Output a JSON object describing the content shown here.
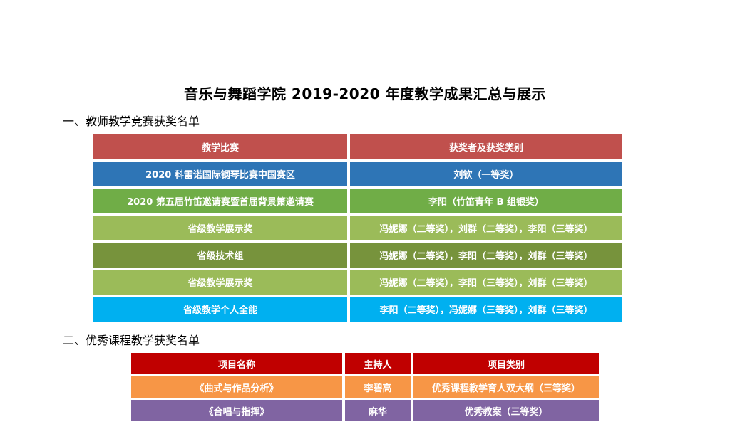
{
  "title": "音乐与舞蹈学院 2019-2020 年度教学成果汇总与展示",
  "section1": {
    "heading": "一、教师教学竞赛获奖名单",
    "headers": [
      "教学比赛",
      "获奖者及获奖类别"
    ],
    "header_color": "#c0504d",
    "rows": [
      {
        "competition": "2020 科雷诺国际钢琴比赛中国赛区",
        "winners": "刘钦（一等奖）",
        "color": "#2e75b6"
      },
      {
        "competition": "2020 第五届竹笛邀请赛暨首届背景箫邀请赛",
        "winners": "李阳（竹笛青年 B 组银奖）",
        "color": "#70ad47"
      },
      {
        "competition": "省级教学展示奖",
        "winners": "冯妮娜（二等奖），刘群（二等奖），李阳（三等奖）",
        "color": "#9bbb59"
      },
      {
        "competition": "省级技术组",
        "winners": "冯妮娜（二等奖），李阳（二等奖），刘群（三等奖）",
        "color": "#77933c"
      },
      {
        "competition": "省级教学展示奖",
        "winners": "冯妮娜（二等奖），李阳（三等奖），刘群（三等奖）",
        "color": "#9bbb59"
      },
      {
        "competition": "省级教学个人全能",
        "winners": "李阳（二等奖），冯妮娜（三等奖），刘群（三等奖）",
        "color": "#00b0f0"
      }
    ]
  },
  "section2": {
    "heading": "二、优秀课程教学获奖名单",
    "headers": [
      "项目名称",
      "主持人",
      "项目类别"
    ],
    "header_color": "#c00000",
    "rows": [
      {
        "name": "《曲式与作品分析》",
        "host": "李碧高",
        "category": "优秀课程教学育人双大纲（三等奖）",
        "color": "#f79646"
      },
      {
        "name": "《合唱与指挥》",
        "host": "麻华",
        "category": "优秀教案（三等奖）",
        "color": "#8064a2"
      }
    ]
  }
}
